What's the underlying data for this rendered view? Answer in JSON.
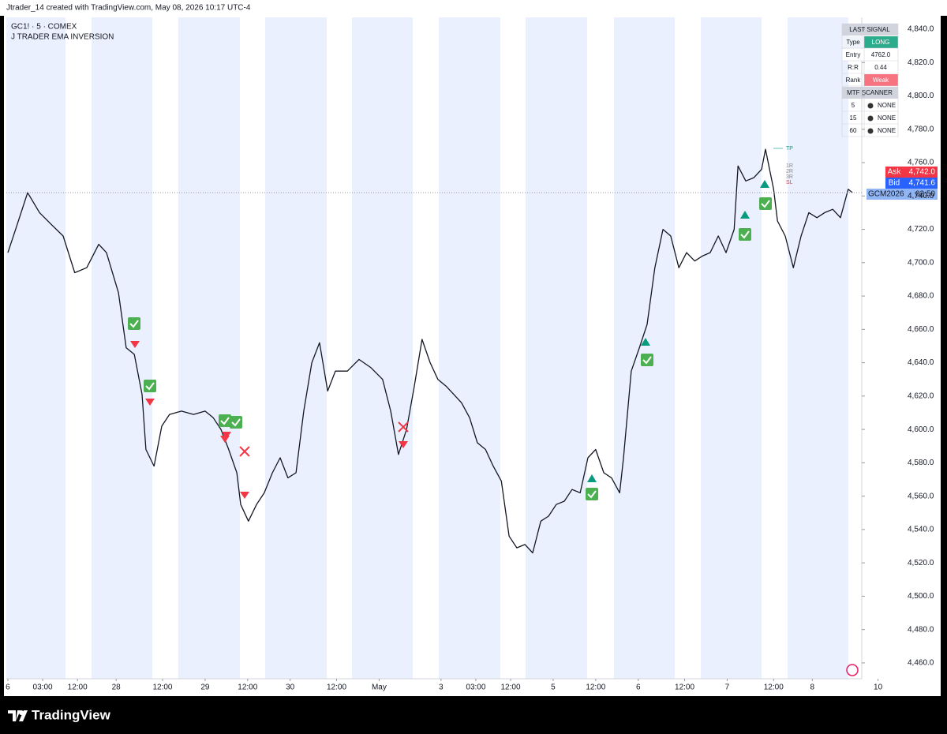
{
  "header": {
    "title": "Jtrader_14 created with TradingView.com, May 08, 2026 10:17 UTC-4"
  },
  "legend": {
    "symbol": "GC1! · 5 · COMEX",
    "indicator": "J TRADER EMA INVERSION"
  },
  "chart_data": {
    "type": "line",
    "color": "#131722",
    "x": [
      0,
      2.0,
      5.1,
      8.2,
      11.2,
      14.3,
      17.3,
      20.4,
      23.5,
      25.5,
      28.6,
      30.6,
      32.7,
      34.7,
      35.7,
      37.8,
      39.8,
      41.8,
      44.9,
      48.0,
      51.0,
      53.1,
      55.1,
      57.1,
      59.2,
      60.2,
      62.2,
      64.3,
      66.3,
      68.4,
      70.4,
      72.4,
      74.5,
      76.5,
      78.6,
      80.6,
      82.7,
      84.7,
      87.8,
      90.8,
      93.9,
      96.9,
      99.0,
      101.0,
      103.1,
      105.1,
      107.1,
      109.2,
      111.2,
      113.3,
      115.3,
      117.3,
      119.4,
      121.4,
      123.5,
      125.5,
      127.6,
      129.6,
      131.6,
      133.7,
      135.7,
      137.8,
      139.8,
      141.8,
      143.9,
      145.9,
      148.0,
      150.0,
      152.0,
      154.1,
      156.1,
      158.2,
      159.2,
      161.2,
      163.3,
      165.3,
      167.3,
      169.4,
      171.4,
      173.5,
      175.5,
      177.6,
      179.6,
      181.6,
      183.7,
      185.7,
      187.8,
      188.8,
      190.8,
      192.9,
      194.9,
      195.9,
      198.0,
      199.0,
      201.0,
      203.1,
      205.1,
      207.1,
      209.2,
      211.2,
      213.3,
      215.3,
      217.3,
      218.4
    ],
    "values": [
      4706,
      4720,
      4742,
      4730,
      4723,
      4716,
      4694,
      4697,
      4711,
      4706,
      4682,
      4649,
      4645,
      4621,
      4588,
      4578,
      4602,
      4609,
      4611,
      4609,
      4611,
      4607,
      4600,
      4588,
      4574,
      4555,
      4545,
      4555,
      4562,
      4574,
      4583,
      4571,
      4574,
      4611,
      4640,
      4652,
      4623,
      4635,
      4635,
      4642,
      4637,
      4630,
      4611,
      4585,
      4600,
      4626,
      4654,
      4640,
      4630,
      4626,
      4621,
      4616,
      4607,
      4592,
      4588,
      4578,
      4569,
      4536,
      4529,
      4531,
      4526,
      4545,
      4548,
      4555,
      4557,
      4564,
      4562,
      4583,
      4588,
      4574,
      4571,
      4562,
      4583,
      4635,
      4649,
      4663,
      4697,
      4720,
      4716,
      4697,
      4706,
      4701,
      4704,
      4706,
      4716,
      4706,
      4720,
      4758,
      4749,
      4751,
      4756,
      4768,
      4744,
      4725,
      4716,
      4697,
      4716,
      4730,
      4727,
      4730,
      4732,
      4727,
      4744,
      4742
    ],
    "xlim": [
      -0.4,
      220.8
    ],
    "xticks": [
      {
        "value": 0,
        "label": "6"
      },
      {
        "value": 9,
        "label": "03:00"
      },
      {
        "value": 18,
        "label": "12:00"
      },
      {
        "value": 28,
        "label": "28"
      },
      {
        "value": 40,
        "label": "12:00"
      },
      {
        "value": 51,
        "label": "29"
      },
      {
        "value": 62,
        "label": "12:00"
      },
      {
        "value": 73,
        "label": "30"
      },
      {
        "value": 85,
        "label": "12:00"
      },
      {
        "value": 96,
        "label": "May"
      },
      {
        "value": 112,
        "label": "3"
      },
      {
        "value": 121,
        "label": "03:00"
      },
      {
        "value": 130,
        "label": "12:00"
      },
      {
        "value": 141,
        "label": "5"
      },
      {
        "value": 152,
        "label": "12:00"
      },
      {
        "value": 163,
        "label": "6"
      },
      {
        "value": 175,
        "label": "12:00"
      },
      {
        "value": 186,
        "label": "7"
      },
      {
        "value": 198,
        "label": "12:00"
      },
      {
        "value": 208,
        "label": "8"
      },
      {
        "value": 225,
        "label": "10"
      }
    ],
    "ylim": [
      4450.5,
      4847.1
    ],
    "yticks": [
      {
        "value": 4460,
        "label": "4,460.0"
      },
      {
        "value": 4480,
        "label": "4,480.0"
      },
      {
        "value": 4500,
        "label": "4,500.0"
      },
      {
        "value": 4520,
        "label": "4,520.0"
      },
      {
        "value": 4540,
        "label": "4,540.0"
      },
      {
        "value": 4560,
        "label": "4,560.0"
      },
      {
        "value": 4580,
        "label": "4,580.0"
      },
      {
        "value": 4600,
        "label": "4,600.0"
      },
      {
        "value": 4620,
        "label": "4,620.0"
      },
      {
        "value": 4640,
        "label": "4,640.0"
      },
      {
        "value": 4660,
        "label": "4,660.0"
      },
      {
        "value": 4680,
        "label": "4,680.0"
      },
      {
        "value": 4700,
        "label": "4,700.0"
      },
      {
        "value": 4720,
        "label": "4,720.0"
      },
      {
        "value": 4740,
        "label": "4,740.0"
      },
      {
        "value": 4760,
        "label": "4,760.0"
      },
      {
        "value": 4780,
        "label": "4,780.0"
      },
      {
        "value": 4800,
        "label": "4,800.0"
      },
      {
        "value": 4820,
        "label": "4,820.0"
      },
      {
        "value": 4840,
        "label": "4,840.0"
      }
    ],
    "grid": false
  },
  "signal_table": {
    "title": "LAST SIGNAL",
    "rows": [
      [
        "Type",
        "LONG"
      ],
      [
        "Entry",
        "4762.0"
      ],
      [
        "R:R",
        "0.44"
      ],
      [
        "Rank",
        "Weak"
      ]
    ],
    "scanner_title": "MTF SCANNER",
    "scanner_rows": [
      [
        "5",
        "NONE"
      ],
      [
        "15",
        "NONE"
      ],
      [
        "60",
        "NONE"
      ]
    ]
  },
  "price_labels": {
    "ask": [
      "Ask",
      "4,742.0"
    ],
    "bid": [
      "Bid",
      "4,741.6"
    ],
    "contract": [
      "GCM2026",
      "02:50"
    ]
  },
  "levels": [
    "TP",
    "1R",
    "2R",
    "3R",
    "SL"
  ],
  "footer": {
    "logo": "TradingView"
  }
}
